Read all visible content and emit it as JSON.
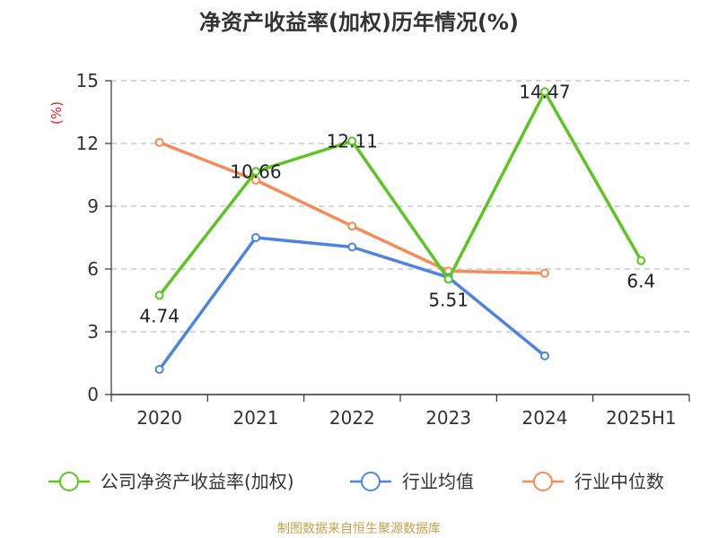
{
  "chart_data": {
    "type": "line",
    "title": "净资产收益率(加权)历年情况(%)",
    "ylabel": "(%)",
    "categories": [
      "2020",
      "2021",
      "2022",
      "2023",
      "2024",
      "2025H1"
    ],
    "ylim": [
      0,
      15
    ],
    "yticks": [
      0,
      3,
      6,
      9,
      12,
      15
    ],
    "grid": true,
    "legend_position": "bottom",
    "series": [
      {
        "name": "公司净资产收益率(加权)",
        "color": "#5cc521",
        "values": [
          4.74,
          10.66,
          12.11,
          5.51,
          14.47,
          6.4
        ],
        "labels": [
          "4.74",
          "10.66",
          "12.11",
          "5.51",
          "14.47",
          "6.4"
        ],
        "show_labels": true
      },
      {
        "name": "行业均值",
        "color": "#4e83e0",
        "values": [
          1.2,
          7.5,
          7.05,
          5.6,
          1.85,
          null
        ],
        "show_labels": false
      },
      {
        "name": "行业中位数",
        "color": "#f58b56",
        "values": [
          12.05,
          10.25,
          8.05,
          5.9,
          5.8,
          null
        ],
        "show_labels": false
      }
    ]
  },
  "footer": {
    "source": "制图数据来自恒生聚源数据库"
  }
}
